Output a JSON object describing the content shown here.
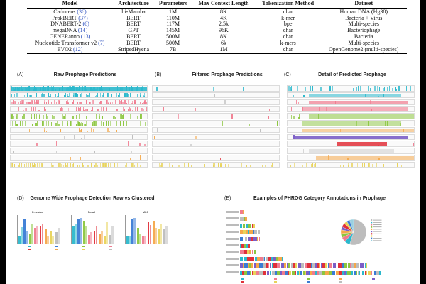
{
  "table": {
    "headers": [
      "Model",
      "Architecture",
      "Parameters",
      "Max Context Length",
      "Tokenization Method",
      "Dataset"
    ],
    "rows": [
      {
        "model": "Caduceus",
        "cite": "(36)",
        "architecture": "bi-Mamba",
        "parameters": "1M",
        "context": "8K",
        "tokenization": "char",
        "dataset": "Human DNA (Hg38)"
      },
      {
        "model": "ProkBERT",
        "cite": "(37)",
        "architecture": "BERT",
        "parameters": "110M",
        "context": "4K",
        "tokenization": "k-mer",
        "dataset": "Bacteria + Virus"
      },
      {
        "model": "DNABERT-2",
        "cite": "(6)",
        "architecture": "BERT",
        "parameters": "117M",
        "context": "2.5k",
        "tokenization": "bpe",
        "dataset": "Multi-species"
      },
      {
        "model": "megaDNA",
        "cite": "(14)",
        "architecture": "GPT",
        "parameters": "145M",
        "context": "96K",
        "tokenization": "char",
        "dataset": "Bacteriophage"
      },
      {
        "model": "GENERanno",
        "cite": "(13)",
        "architecture": "BERT",
        "parameters": "500M",
        "context": "8K",
        "tokenization": "char",
        "dataset": "Bacteria"
      },
      {
        "model": "Nucleotide Transformer v2",
        "cite": "(7)",
        "architecture": "BERT",
        "parameters": "500M",
        "context": "6k",
        "tokenization": "k-mers",
        "dataset": "Multi-species"
      },
      {
        "model": "EVO2",
        "cite": "(12)",
        "architecture": "StripedHyena",
        "parameters": "7B",
        "context": "1M",
        "tokenization": "char",
        "dataset": "OpenGenome2 (multi-species)"
      }
    ]
  },
  "panels": {
    "a": {
      "letter": "(A)",
      "title": "Raw Prophage Predictions"
    },
    "b": {
      "letter": "(B)",
      "title": "Filtered Prophage Predictions"
    },
    "c": {
      "letter": "(C)",
      "title": "Detail of Predicted Prophage"
    },
    "d": {
      "letter": "(D)",
      "title": "Genome Wide Prophage Detection Raw vs Clustered",
      "subplots": [
        "Precision",
        "Recall",
        "MCC"
      ]
    },
    "e": {
      "letter": "(E)",
      "title": "Examples of PHROG Category Annotations in Prophage"
    }
  },
  "colors": {
    "teal": "#2bb8cc",
    "pink": "#f07b8f",
    "green": "#8cc63f",
    "orange": "#f4a84a",
    "purple": "#7b5ec6",
    "red": "#e0303a",
    "yellow": "#e8d35a",
    "blue": "#3a7bd5",
    "grey": "#bdbdbd"
  }
}
